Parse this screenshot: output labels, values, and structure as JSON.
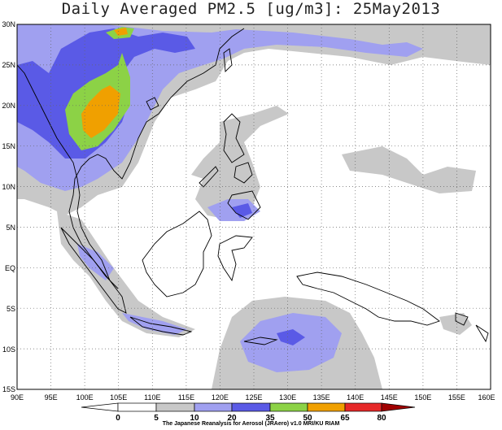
{
  "title": "Daily Averaged PM2.5 [ug/m3]: 25May2013",
  "credit": "The Japanese Reanalysis for Aerosol (JRAero) v1.0 MRI/KU RIAM",
  "map": {
    "lon_range": [
      90,
      160
    ],
    "lat_range": [
      -15,
      30
    ],
    "lat_labels": [
      "30N",
      "25N",
      "20N",
      "15N",
      "10N",
      "5N",
      "EQ",
      "5S",
      "10S",
      "15S"
    ],
    "lon_labels": [
      "90E",
      "95E",
      "100E",
      "105E",
      "110E",
      "115E",
      "120E",
      "125E",
      "130E",
      "135E",
      "140E",
      "145E",
      "150E",
      "155E",
      "160E"
    ]
  },
  "colorbar": {
    "levels": [
      "0",
      "5",
      "10",
      "20",
      "35",
      "50",
      "65",
      "80"
    ],
    "colors": {
      "lt5": "#ffffff",
      "5-10": "#ffffff",
      "10-20": "#c8c8c8",
      "20-35": "#a0a0f0",
      "35-50": "#5a5ae6",
      "50-65": "#8cd246",
      "65-80": "#f0a000",
      "80-": "#e62828",
      "gt": "#a00000"
    }
  }
}
